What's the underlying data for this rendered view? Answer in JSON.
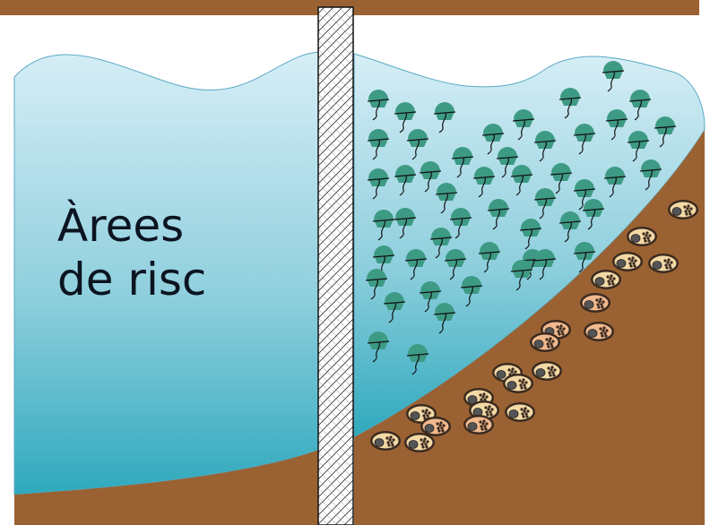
{
  "label": {
    "line1": "Àrees",
    "line2": "de risc"
  },
  "colors": {
    "ground": "#9a6232",
    "water_top": "#d6eef6",
    "water_bottom": "#2fa9bd",
    "organism": "#3d9a84",
    "cyst_fill": "#f3d9a6",
    "cyst_alt_fill": "#f1b98e",
    "pillar": "#ffffff"
  },
  "icons": {
    "organism": "dinoflagellate-cell-icon",
    "cyst": "resting-cyst-icon"
  }
}
